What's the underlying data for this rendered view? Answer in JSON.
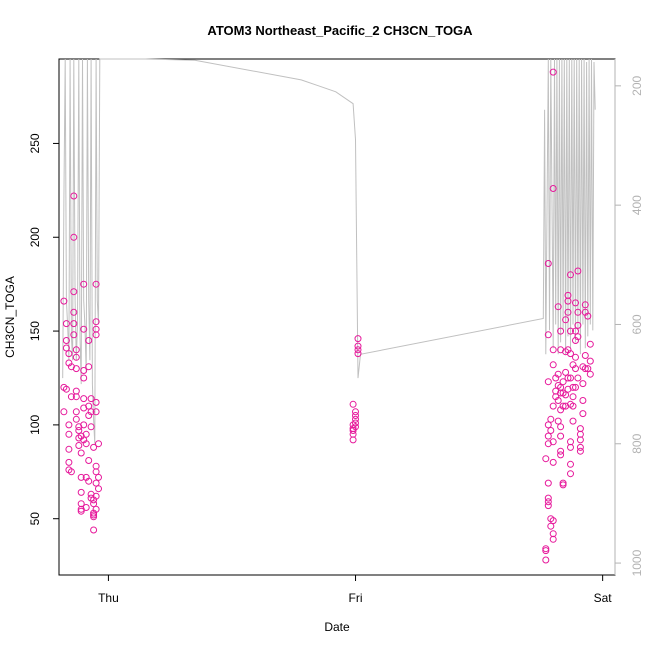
{
  "chart_data": {
    "type": "scatter",
    "title": "ATOM3 Northeast_Pacific_2 CH3CN_TOGA",
    "xlabel": "Date",
    "ylabel": "CH3CN_TOGA",
    "x_ticks": [
      {
        "label": "Thu",
        "value": 0
      },
      {
        "label": "Fri",
        "value": 1
      },
      {
        "label": "Sat",
        "value": 2
      }
    ],
    "xlim": [
      -0.2,
      2.05
    ],
    "ylim": [
      20,
      295
    ],
    "y_ticks": [
      50,
      100,
      150,
      200,
      250
    ],
    "right_axis": {
      "label": "",
      "ylim": [
        1020,
        155
      ],
      "ticks": [
        200,
        400,
        600,
        800,
        1000
      ],
      "color": "#b3b3b3"
    },
    "colors": {
      "points": "#e6199b",
      "line": "#c0c0c0"
    },
    "grid": false,
    "series": [
      {
        "kind": "points",
        "values": [
          [
            -0.18,
            166
          ],
          [
            -0.18,
            120
          ],
          [
            -0.18,
            107
          ],
          [
            -0.17,
            154
          ],
          [
            -0.17,
            145
          ],
          [
            -0.17,
            141
          ],
          [
            -0.17,
            119
          ],
          [
            -0.16,
            138
          ],
          [
            -0.16,
            133
          ],
          [
            -0.16,
            100
          ],
          [
            -0.16,
            95
          ],
          [
            -0.16,
            87
          ],
          [
            -0.16,
            80
          ],
          [
            -0.16,
            76
          ],
          [
            -0.15,
            131
          ],
          [
            -0.15,
            115
          ],
          [
            -0.15,
            75
          ],
          [
            -0.14,
            222
          ],
          [
            -0.14,
            200
          ],
          [
            -0.14,
            171
          ],
          [
            -0.14,
            160
          ],
          [
            -0.14,
            154
          ],
          [
            -0.14,
            148
          ],
          [
            -0.13,
            140
          ],
          [
            -0.13,
            136
          ],
          [
            -0.13,
            130
          ],
          [
            -0.13,
            118
          ],
          [
            -0.13,
            115
          ],
          [
            -0.13,
            107
          ],
          [
            -0.13,
            103
          ],
          [
            -0.12,
            99
          ],
          [
            -0.12,
            97
          ],
          [
            -0.12,
            93
          ],
          [
            -0.12,
            89
          ],
          [
            -0.11,
            94
          ],
          [
            -0.11,
            85
          ],
          [
            -0.11,
            72
          ],
          [
            -0.11,
            64
          ],
          [
            -0.11,
            58
          ],
          [
            -0.11,
            55
          ],
          [
            -0.11,
            54
          ],
          [
            -0.1,
            175
          ],
          [
            -0.1,
            151
          ],
          [
            -0.1,
            129
          ],
          [
            -0.1,
            125
          ],
          [
            -0.1,
            114
          ],
          [
            -0.1,
            109
          ],
          [
            -0.1,
            100
          ],
          [
            -0.1,
            92
          ],
          [
            -0.09,
            95
          ],
          [
            -0.09,
            90
          ],
          [
            -0.09,
            72
          ],
          [
            -0.09,
            56
          ],
          [
            -0.08,
            145
          ],
          [
            -0.08,
            131
          ],
          [
            -0.08,
            110
          ],
          [
            -0.08,
            105
          ],
          [
            -0.08,
            81
          ],
          [
            -0.08,
            70
          ],
          [
            -0.07,
            114
          ],
          [
            -0.07,
            107
          ],
          [
            -0.07,
            99
          ],
          [
            -0.07,
            63
          ],
          [
            -0.07,
            61
          ],
          [
            -0.06,
            60
          ],
          [
            -0.06,
            53
          ],
          [
            -0.06,
            52
          ],
          [
            -0.06,
            51
          ],
          [
            -0.06,
            44
          ],
          [
            -0.06,
            88
          ],
          [
            -0.06,
            58
          ],
          [
            -0.05,
            175
          ],
          [
            -0.05,
            155
          ],
          [
            -0.05,
            151
          ],
          [
            -0.05,
            148
          ],
          [
            -0.05,
            112
          ],
          [
            -0.05,
            107
          ],
          [
            -0.05,
            78
          ],
          [
            -0.05,
            75
          ],
          [
            -0.05,
            69
          ],
          [
            -0.05,
            62
          ],
          [
            -0.05,
            55
          ],
          [
            -0.04,
            90
          ],
          [
            -0.04,
            72
          ],
          [
            -0.04,
            66
          ],
          [
            0.99,
            111
          ],
          [
            0.99,
            100
          ],
          [
            0.99,
            98
          ],
          [
            0.99,
            97
          ],
          [
            0.99,
            95
          ],
          [
            0.99,
            92
          ],
          [
            1.0,
            107
          ],
          [
            1.0,
            105
          ],
          [
            1.0,
            103
          ],
          [
            1.0,
            101
          ],
          [
            1.0,
            99
          ],
          [
            1.01,
            146
          ],
          [
            1.01,
            142
          ],
          [
            1.01,
            140
          ],
          [
            1.01,
            138
          ],
          [
            1.77,
            34
          ],
          [
            1.77,
            28
          ],
          [
            1.77,
            33
          ],
          [
            1.77,
            82
          ],
          [
            1.78,
            186
          ],
          [
            1.78,
            148
          ],
          [
            1.78,
            123
          ],
          [
            1.78,
            100
          ],
          [
            1.78,
            94
          ],
          [
            1.78,
            90
          ],
          [
            1.78,
            69
          ],
          [
            1.78,
            61
          ],
          [
            1.78,
            59
          ],
          [
            1.78,
            57
          ],
          [
            1.79,
            103
          ],
          [
            1.79,
            97
          ],
          [
            1.79,
            50
          ],
          [
            1.79,
            46
          ],
          [
            1.8,
            288
          ],
          [
            1.8,
            226
          ],
          [
            1.8,
            140
          ],
          [
            1.8,
            132
          ],
          [
            1.8,
            110
          ],
          [
            1.8,
            91
          ],
          [
            1.8,
            80
          ],
          [
            1.8,
            49
          ],
          [
            1.8,
            42
          ],
          [
            1.8,
            39
          ],
          [
            1.81,
            125
          ],
          [
            1.81,
            115
          ],
          [
            1.81,
            118
          ],
          [
            1.82,
            163
          ],
          [
            1.82,
            127
          ],
          [
            1.82,
            121
          ],
          [
            1.82,
            113
          ],
          [
            1.82,
            102
          ],
          [
            1.83,
            150
          ],
          [
            1.83,
            140
          ],
          [
            1.83,
            120
          ],
          [
            1.83,
            117
          ],
          [
            1.83,
            108
          ],
          [
            1.83,
            99
          ],
          [
            1.83,
            94
          ],
          [
            1.83,
            86
          ],
          [
            1.83,
            84
          ],
          [
            1.84,
            69
          ],
          [
            1.84,
            68
          ],
          [
            1.84,
            123
          ],
          [
            1.84,
            117
          ],
          [
            1.84,
            110
          ],
          [
            1.85,
            156
          ],
          [
            1.85,
            139
          ],
          [
            1.85,
            128
          ],
          [
            1.85,
            116
          ],
          [
            1.85,
            110
          ],
          [
            1.86,
            169
          ],
          [
            1.86,
            166
          ],
          [
            1.86,
            160
          ],
          [
            1.86,
            140
          ],
          [
            1.86,
            125
          ],
          [
            1.86,
            119
          ],
          [
            1.87,
            180
          ],
          [
            1.87,
            150
          ],
          [
            1.87,
            138
          ],
          [
            1.87,
            125
          ],
          [
            1.87,
            111
          ],
          [
            1.87,
            91
          ],
          [
            1.87,
            88
          ],
          [
            1.87,
            79
          ],
          [
            1.87,
            74
          ],
          [
            1.88,
            132
          ],
          [
            1.88,
            120
          ],
          [
            1.88,
            115
          ],
          [
            1.88,
            110
          ],
          [
            1.88,
            102
          ],
          [
            1.89,
            165
          ],
          [
            1.89,
            150
          ],
          [
            1.89,
            145
          ],
          [
            1.89,
            136
          ],
          [
            1.89,
            130
          ],
          [
            1.89,
            120
          ],
          [
            1.9,
            182
          ],
          [
            1.9,
            160
          ],
          [
            1.9,
            153
          ],
          [
            1.9,
            147
          ],
          [
            1.9,
            125
          ],
          [
            1.91,
            98
          ],
          [
            1.91,
            95
          ],
          [
            1.91,
            92
          ],
          [
            1.91,
            88
          ],
          [
            1.91,
            86
          ],
          [
            1.92,
            131
          ],
          [
            1.92,
            122
          ],
          [
            1.92,
            113
          ],
          [
            1.92,
            106
          ],
          [
            1.93,
            164
          ],
          [
            1.93,
            160
          ],
          [
            1.93,
            137
          ],
          [
            1.93,
            130
          ],
          [
            1.94,
            158
          ],
          [
            1.94,
            130
          ],
          [
            1.95,
            143
          ],
          [
            1.95,
            134
          ],
          [
            1.95,
            127
          ]
        ]
      },
      {
        "kind": "line",
        "right_axis": true,
        "values": [
          [
            -0.185,
            690
          ],
          [
            -0.18,
            390
          ],
          [
            -0.175,
            145
          ],
          [
            -0.17,
            560
          ],
          [
            -0.165,
            600
          ],
          [
            -0.16,
            660
          ],
          [
            -0.155,
            145
          ],
          [
            -0.15,
            620
          ],
          [
            -0.145,
            660
          ],
          [
            -0.14,
            145
          ],
          [
            -0.135,
            560
          ],
          [
            -0.13,
            660
          ],
          [
            -0.125,
            600
          ],
          [
            -0.12,
            145
          ],
          [
            -0.115,
            620
          ],
          [
            -0.11,
            700
          ],
          [
            -0.105,
            145
          ],
          [
            -0.1,
            560
          ],
          [
            -0.095,
            600
          ],
          [
            -0.09,
            680
          ],
          [
            -0.085,
            145
          ],
          [
            -0.08,
            560
          ],
          [
            -0.075,
            660
          ],
          [
            -0.07,
            145
          ],
          [
            -0.065,
            700
          ],
          [
            -0.06,
            760
          ],
          [
            -0.055,
            800
          ],
          [
            -0.05,
            145
          ],
          [
            -0.045,
            560
          ],
          [
            -0.04,
            600
          ],
          [
            -0.035,
            145
          ],
          [
            0.15,
            145
          ],
          [
            0.35,
            157
          ],
          [
            0.78,
            190
          ],
          [
            0.85,
            200
          ],
          [
            0.92,
            210
          ],
          [
            0.99,
            230
          ],
          [
            1.0,
            290
          ],
          [
            1.01,
            690
          ],
          [
            1.02,
            650
          ],
          [
            1.76,
            590
          ],
          [
            1.765,
            240
          ],
          [
            1.77,
            650
          ],
          [
            1.78,
            110
          ],
          [
            1.785,
            610
          ],
          [
            1.79,
            120
          ],
          [
            1.8,
            640
          ],
          [
            1.805,
            140
          ],
          [
            1.81,
            600
          ],
          [
            1.815,
            110
          ],
          [
            1.82,
            650
          ],
          [
            1.825,
            130
          ],
          [
            1.83,
            630
          ],
          [
            1.835,
            140
          ],
          [
            1.84,
            610
          ],
          [
            1.845,
            120
          ],
          [
            1.85,
            650
          ],
          [
            1.855,
            125
          ],
          [
            1.86,
            620
          ],
          [
            1.865,
            110
          ],
          [
            1.87,
            640
          ],
          [
            1.875,
            115
          ],
          [
            1.88,
            600
          ],
          [
            1.885,
            130
          ],
          [
            1.89,
            630
          ],
          [
            1.895,
            120
          ],
          [
            1.9,
            610
          ],
          [
            1.905,
            150
          ],
          [
            1.91,
            650
          ],
          [
            1.915,
            140
          ],
          [
            1.92,
            600
          ],
          [
            1.925,
            130
          ],
          [
            1.93,
            640
          ],
          [
            1.935,
            160
          ],
          [
            1.94,
            620
          ],
          [
            1.945,
            150
          ],
          [
            1.95,
            600
          ],
          [
            1.955,
            135
          ],
          [
            1.96,
            610
          ],
          [
            1.965,
            160
          ],
          [
            1.97,
            240
          ]
        ]
      }
    ]
  }
}
